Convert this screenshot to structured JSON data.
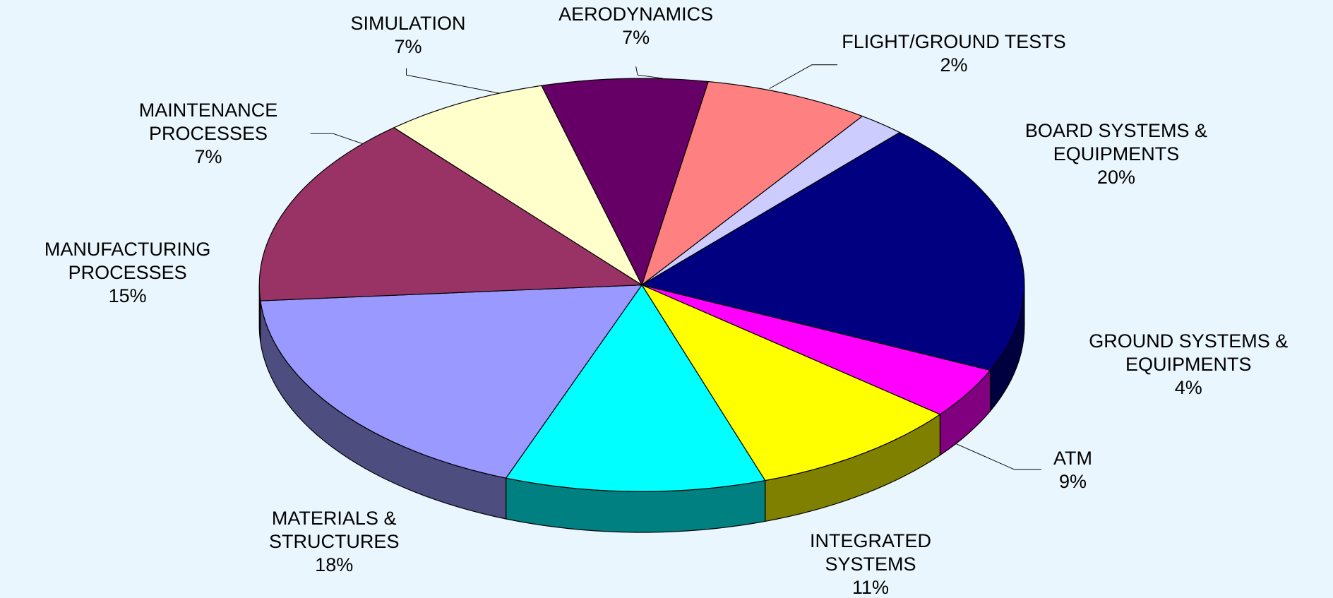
{
  "chart_data": {
    "type": "pie",
    "categories": [
      "AERODYNAMICS",
      "FLIGHT/GROUND TESTS",
      "BOARD SYSTEMS & EQUIPMENTS",
      "GROUND SYSTEMS & EQUIPMENTS",
      "ATM",
      "INTEGRATED SYSTEMS",
      "MATERIALS & STRUCTURES",
      "MANUFACTURING PROCESSES",
      "MAINTENANCE PROCESSES",
      "SIMULATION"
    ],
    "values": [
      7,
      2,
      20,
      4,
      9,
      11,
      18,
      15,
      7,
      7
    ],
    "value_labels": [
      "7%",
      "2%",
      "20%",
      "4%",
      "9%",
      "11%",
      "18%",
      "15%",
      "7%",
      "7%"
    ],
    "colors": [
      "#ff8080",
      "#ccccff",
      "#000080",
      "#ff00ff",
      "#ffff00",
      "#00ffff",
      "#9999ff",
      "#993366",
      "#ffffcc",
      "#660066"
    ]
  }
}
